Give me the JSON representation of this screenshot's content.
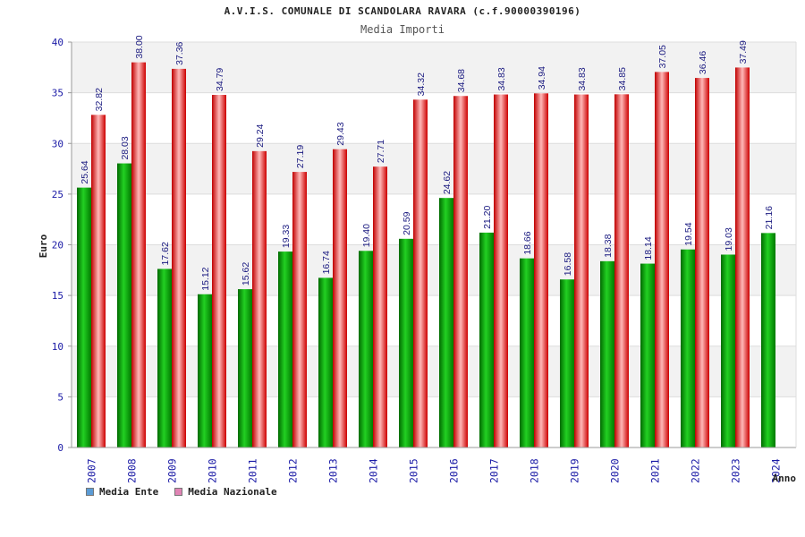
{
  "header": {
    "title": "A.V.I.S. COMUNALE DI SCANDOLARA RAVARA (c.f.90000390196)",
    "subtitle": "Media Importi"
  },
  "legend": {
    "items": [
      {
        "label": "Media Ente",
        "color": "#5b9bd5"
      },
      {
        "label": "Media Nazionale",
        "color": "#e084b4"
      }
    ]
  },
  "chart_data": {
    "type": "bar",
    "title": "Media Importi",
    "xlabel": "Anno",
    "ylabel": "Euro",
    "ylim": [
      0,
      40
    ],
    "yticks": [
      0,
      5,
      10,
      15,
      20,
      25,
      30,
      35,
      40
    ],
    "categories": [
      "2007",
      "2008",
      "2009",
      "2010",
      "2011",
      "2012",
      "2013",
      "2014",
      "2015",
      "2016",
      "2017",
      "2018",
      "2019",
      "2020",
      "2021",
      "2022",
      "2023",
      "2024"
    ],
    "series": [
      {
        "name": "Media Ente",
        "color": "#00a000",
        "values": [
          25.64,
          28.03,
          17.62,
          15.12,
          15.62,
          19.33,
          16.74,
          19.4,
          20.59,
          24.62,
          21.2,
          18.66,
          16.58,
          18.38,
          18.14,
          19.54,
          19.03,
          21.16
        ],
        "labels": [
          "25.64",
          "28.03",
          "17.62",
          "15.12",
          "15.62",
          "19.33",
          "16.74",
          "19.40",
          "20.59",
          "24.62",
          "21.20",
          "18.66",
          "16.58",
          "18.38",
          "18.14",
          "19.54",
          "19.03",
          "21.16"
        ]
      },
      {
        "name": "Media Nazionale",
        "color": "#e00000",
        "values": [
          32.82,
          38.0,
          37.36,
          34.79,
          29.24,
          27.19,
          29.43,
          27.71,
          34.32,
          34.68,
          34.83,
          34.94,
          34.83,
          34.85,
          37.05,
          36.46,
          37.49,
          null
        ],
        "labels": [
          "32.82",
          "38.00",
          "37.36",
          "34.79",
          "29.24",
          "27.19",
          "29.43",
          "27.71",
          "34.32",
          "34.68",
          "34.83",
          "34.94",
          "34.83",
          "34.85",
          "37.05",
          "36.46",
          "37.49",
          ""
        ]
      }
    ]
  }
}
